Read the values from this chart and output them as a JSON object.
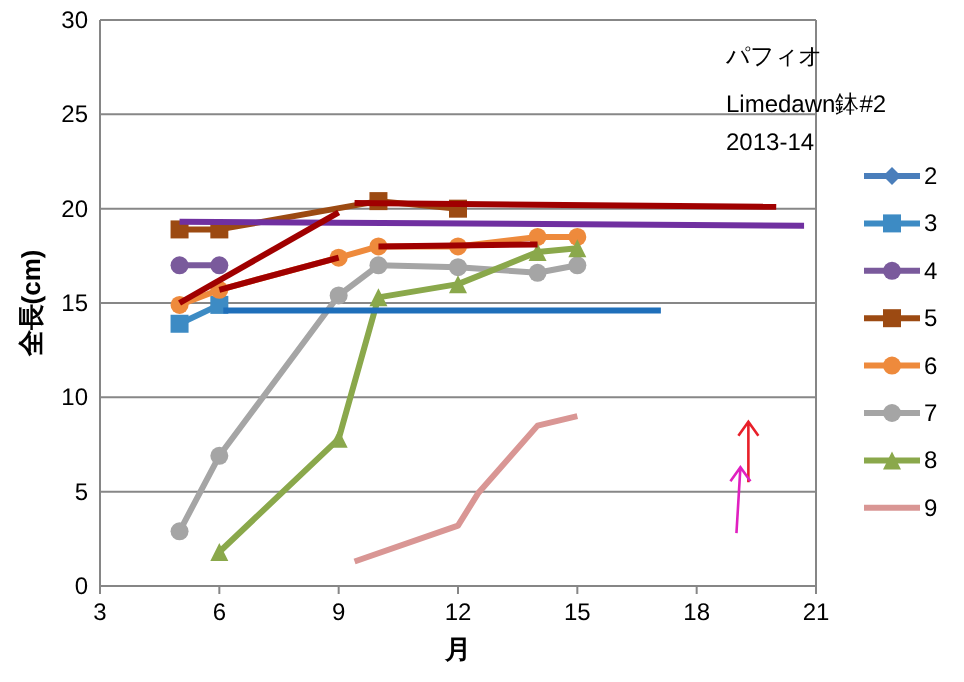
{
  "chart_data": {
    "type": "line",
    "title": "パフィオ",
    "subtitle": "Limedawn鉢#2",
    "annotations": [
      "2013-14"
    ],
    "xlabel": "月",
    "ylabel": "全長(cm)",
    "xlim": [
      3,
      21
    ],
    "ylim": [
      0,
      30
    ],
    "xticks": [
      3,
      6,
      9,
      12,
      15,
      18,
      21
    ],
    "yticks": [
      0,
      5,
      10,
      15,
      20,
      25,
      30
    ],
    "grid": "y",
    "legend": "right",
    "series": [
      {
        "name": "2",
        "color": "#4a7ebb",
        "marker": "diamond",
        "values": [
          null
        ]
      },
      {
        "name": "3",
        "color": "#3d8bc4",
        "marker": "square",
        "x": [
          5,
          6
        ],
        "values": [
          13.9,
          14.9
        ]
      },
      {
        "name": "4",
        "color": "#7a5a9c",
        "marker": "circle",
        "x": [
          5,
          6
        ],
        "values": [
          17,
          17
        ]
      },
      {
        "name": "5",
        "color": "#9c4a12",
        "marker": "square",
        "x": [
          5,
          6,
          10,
          12
        ],
        "values": [
          18.9,
          18.9,
          20.4,
          20
        ]
      },
      {
        "name": "6",
        "color": "#ee8a3c",
        "marker": "circle",
        "x": [
          5,
          6,
          9,
          10,
          12,
          14,
          15
        ],
        "values": [
          14.9,
          15.7,
          17.4,
          18,
          18,
          18.5,
          18.5
        ]
      },
      {
        "name": "7",
        "color": "#a5a5a5",
        "marker": "circle",
        "x": [
          5,
          6,
          9,
          10,
          12,
          14,
          15
        ],
        "values": [
          2.9,
          6.9,
          15.4,
          17,
          16.9,
          16.6,
          17
        ]
      },
      {
        "name": "8",
        "color": "#8aa84b",
        "marker": "triangle",
        "x": [
          6,
          9,
          10,
          12,
          14,
          15
        ],
        "values": [
          1.8,
          7.8,
          15.3,
          16,
          17.7,
          17.9
        ]
      },
      {
        "name": "9",
        "color": "#d99694",
        "marker": "none",
        "x": [
          9.4,
          12,
          12.5,
          14,
          15
        ],
        "values": [
          1.3,
          3.2,
          4.9,
          8.5,
          9
        ]
      },
      {
        "color": "#1f6fba",
        "marker": "none",
        "x": [
          6.1,
          17.1
        ],
        "values": [
          14.6,
          14.6
        ]
      },
      {
        "color": "#7030a0",
        "marker": "none",
        "x": [
          5,
          20.7
        ],
        "values": [
          19.3,
          19.1
        ]
      },
      {
        "color": "#a00000",
        "marker": "none",
        "x": [
          5,
          9
        ],
        "values": [
          15,
          19.8
        ]
      },
      {
        "color": "#a00000",
        "marker": "none",
        "x": [
          6,
          9
        ],
        "values": [
          15.7,
          17.4
        ]
      },
      {
        "color": "#a00000",
        "marker": "none",
        "x": [
          10,
          14
        ],
        "values": [
          18,
          18.1
        ]
      },
      {
        "color": "#a00000",
        "marker": "none",
        "x": [
          9.4,
          20
        ],
        "values": [
          20.3,
          20.1
        ]
      }
    ]
  }
}
